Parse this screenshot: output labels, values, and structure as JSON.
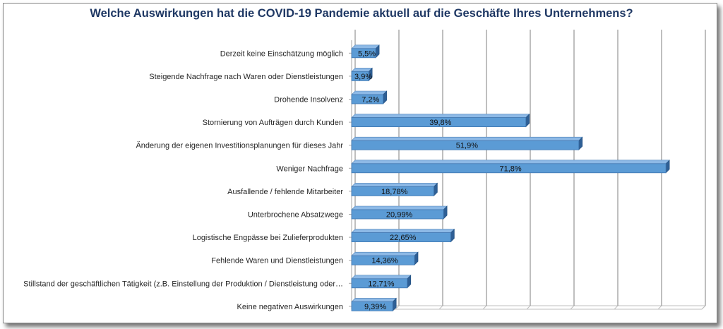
{
  "chart_data": {
    "type": "bar",
    "orientation": "horizontal",
    "title": "Welche Auswirkungen hat die COVID-19 Pandemie aktuell auf die Geschäfte Ihres Unternehmens?",
    "categories": [
      "Derzeit keine Einschätzung möglich",
      "Steigende Nachfrage nach Waren oder Dienstleistungen",
      "Drohende Insolvenz",
      "Stornierung von Aufträgen durch Kunden",
      "Änderung der eigenen Investitionsplanungen für dieses Jahr",
      "Weniger Nachfrage",
      "Ausfallende / fehlende Mitarbeiter",
      "Unterbrochene Absatzwege",
      "Logistische Engpässe bei Zulieferprodukten",
      "Fehlende Waren und Dienstleistungen",
      "Stillstand der geschäftlichen Tätigkeit (z.B. Einstellung der Produktion / Dienstleistung oder…",
      "Keine negativen Auswirkungen"
    ],
    "values": [
      5.5,
      3.9,
      7.2,
      39.8,
      51.9,
      71.8,
      18.78,
      20.99,
      22.65,
      14.36,
      12.71,
      9.39
    ],
    "data_labels": [
      "5,5%",
      "3,9%",
      "7,2%",
      "39,8%",
      "51,9%",
      "71,8%",
      "18,78%",
      "20,99%",
      "22,65%",
      "14,36%",
      "12,71%",
      "9,39%"
    ],
    "xlim": [
      0,
      80
    ],
    "grid": true,
    "legend": "none",
    "colors": {
      "bar": "#5b9bd5",
      "bar_top": "#8db9e6",
      "bar_side": "#2e5f95",
      "title": "#1f3864",
      "grid": "#7f7f7f"
    }
  }
}
